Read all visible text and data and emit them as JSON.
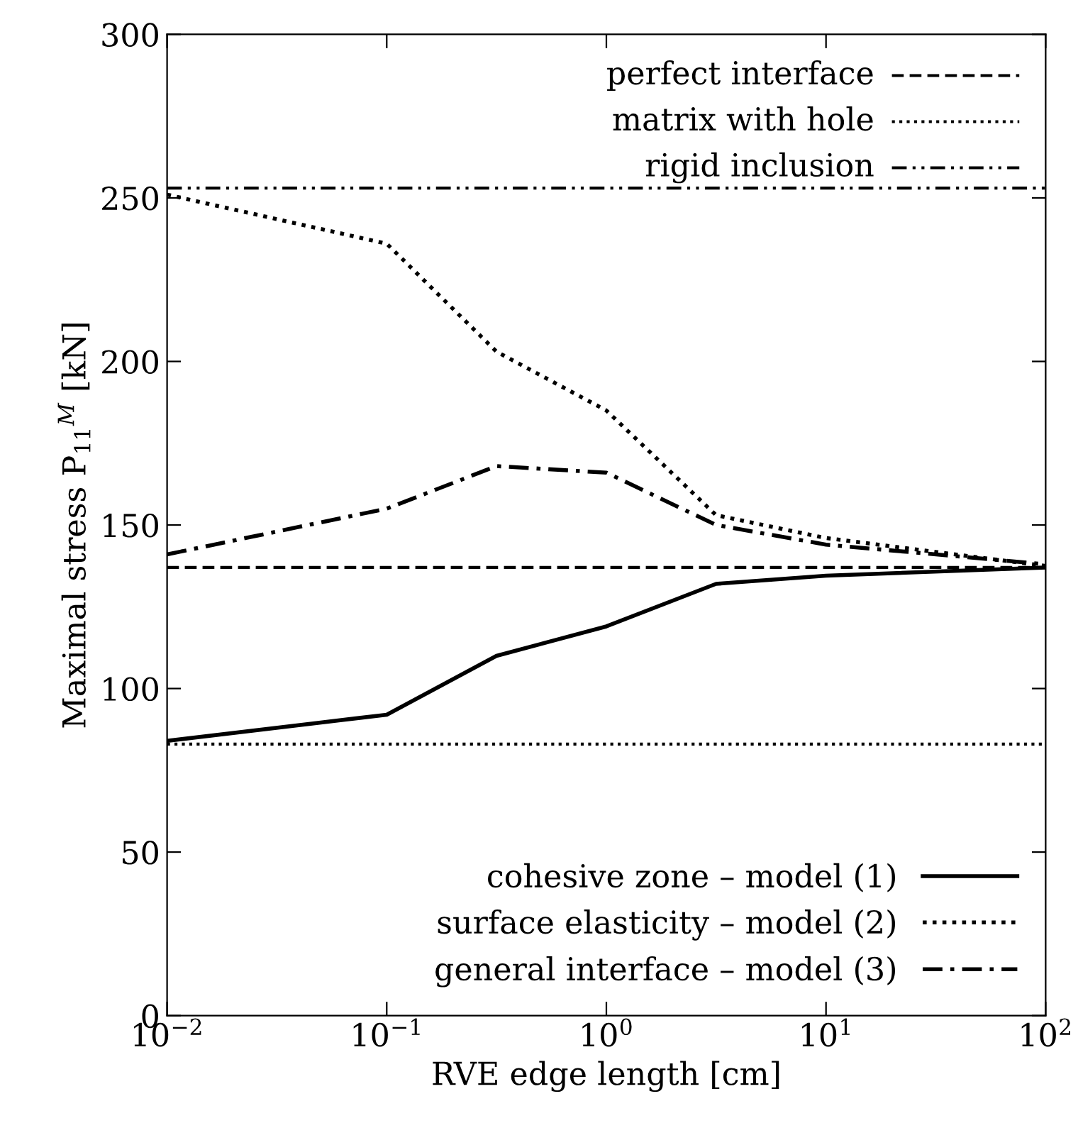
{
  "chart_data": {
    "type": "line",
    "xlabel": "RVE edge length [cm]",
    "ylabel": "Maximal stress P$_{11}$$^{M}$ [kN]",
    "x": [
      0.01,
      0.1,
      0.316,
      1,
      3.16,
      10,
      100
    ],
    "series": [
      {
        "name": "cohesive zone – model (1)",
        "color": "#000000",
        "line_style": "solid",
        "values": [
          84,
          92,
          110,
          119,
          132,
          134.5,
          137
        ]
      },
      {
        "name": "surface elasticity – model (2)",
        "color": "#000000",
        "line_style": "dotted",
        "values": [
          251,
          236,
          203,
          185,
          153,
          146,
          137.5
        ]
      },
      {
        "name": "general interface – model (3)",
        "color": "#000000",
        "line_style": "dashdot",
        "values": [
          141,
          155,
          168,
          166,
          150,
          144,
          138
        ]
      }
    ],
    "ref_lines": [
      {
        "axis": "y",
        "value": 137,
        "label": "perfect interface",
        "color": "#000000",
        "line_style": "dashed"
      },
      {
        "axis": "y",
        "value": 83,
        "label": "matrix with hole",
        "color": "#000000",
        "line_style": "dotted"
      },
      {
        "axis": "y",
        "value": 253,
        "label": "rigid inclusion",
        "color": "#000000",
        "line_style": "dashdotdot"
      }
    ],
    "log": "x",
    "xlim": [
      0.01,
      100
    ],
    "xticks": [
      {
        "value": 0.01,
        "label": "10$^{−2}$"
      },
      {
        "value": 0.1,
        "label": "10$^{−1}$"
      },
      {
        "value": 1,
        "label": "10$^{0}$"
      },
      {
        "value": 10,
        "label": "10$^{1}$"
      },
      {
        "value": 100,
        "label": "10$^{2}$"
      }
    ],
    "ylim": [
      0,
      300
    ],
    "yticks": [
      0,
      50,
      100,
      150,
      200,
      250,
      300
    ],
    "grid": false,
    "legend": "right",
    "marker": "none"
  }
}
